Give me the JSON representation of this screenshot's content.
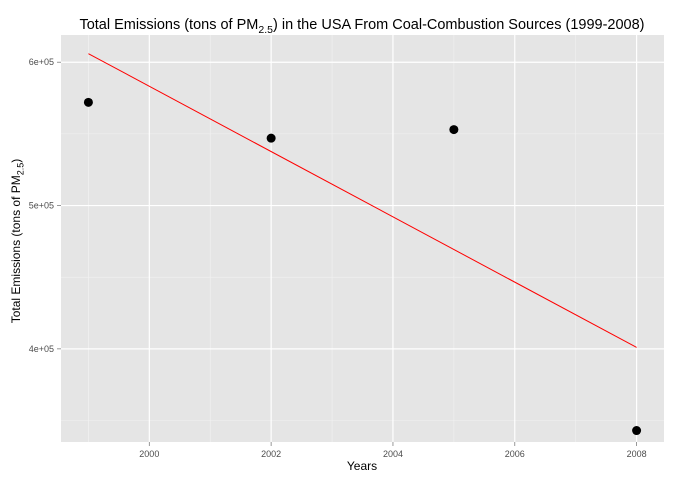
{
  "chart_data": {
    "type": "scatter",
    "title": "Total Emissions (tons of PM2.5) in the USA From Coal-Combustion Sources (1999-2008)",
    "title_parts": {
      "before": "Total Emissions (tons of PM",
      "subscript": "2.5",
      "after": ") in the USA From Coal-Combustion Sources (1999-2008)"
    },
    "xlabel": "Years",
    "ylabel": "Total Emissions (tons of PM2.5)",
    "ylabel_parts": {
      "before": "Total Emissions (tons of PM",
      "subscript": "2.5",
      "after": ")"
    },
    "x_ticks": [
      2000,
      2002,
      2004,
      2006,
      2008
    ],
    "y_ticks": [
      400000,
      500000,
      600000
    ],
    "y_tick_labels": [
      "4e+05",
      "5e+05",
      "6e+05"
    ],
    "xlim": [
      1998.55,
      2008.45
    ],
    "ylim": [
      335000,
      619000
    ],
    "grid": true,
    "legend": "none",
    "points": [
      {
        "x": 1999,
        "y": 572000
      },
      {
        "x": 2002,
        "y": 547000
      },
      {
        "x": 2005,
        "y": 553000
      },
      {
        "x": 2008,
        "y": 343000
      }
    ],
    "trend_line": {
      "type": "linear",
      "x": [
        1999,
        2008
      ],
      "y": [
        606000,
        401000
      ]
    },
    "colors": {
      "panel_background": "#e5e5e5",
      "grid_major": "#ffffff",
      "grid_minor": "#f2f2f2",
      "points": "#000000",
      "trend_line": "#ff0000"
    }
  }
}
